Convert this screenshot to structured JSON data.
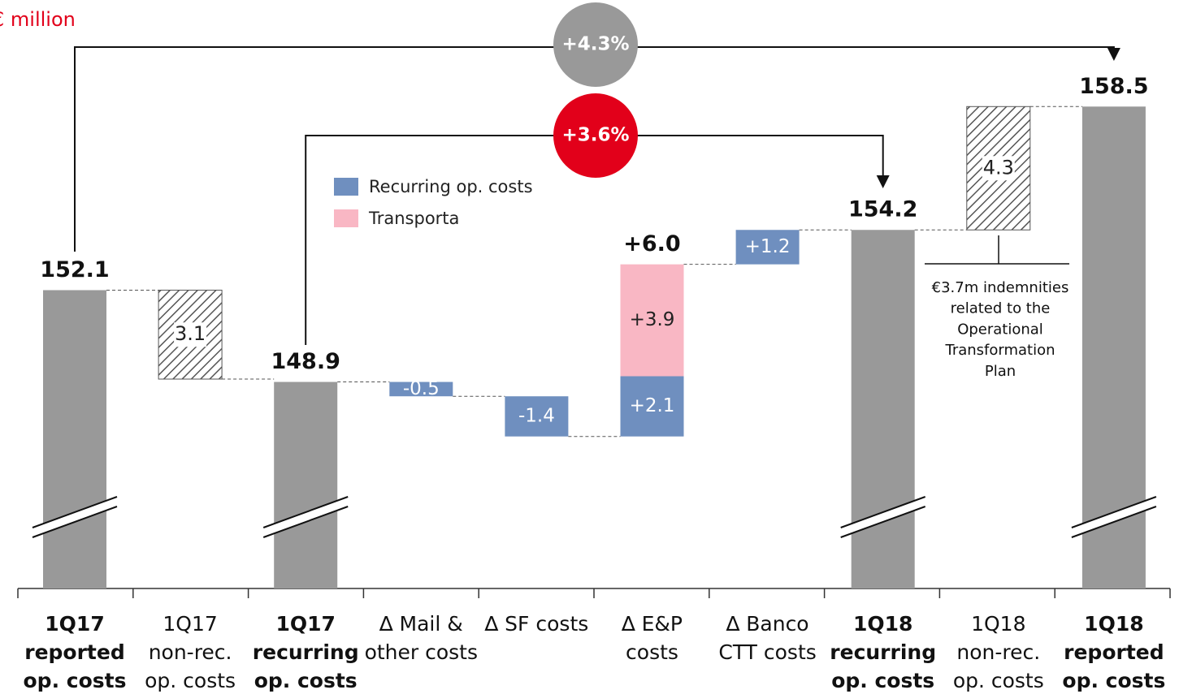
{
  "chart_data": {
    "type": "waterfall",
    "unit_label": "€ million",
    "categories": [
      [
        "1Q17",
        "reported",
        "op. costs"
      ],
      [
        "1Q17",
        "non-rec.",
        "op. costs"
      ],
      [
        "1Q17",
        "recurring",
        "op. costs"
      ],
      [
        "∆ Mail &",
        "other costs"
      ],
      [
        "∆ SF costs"
      ],
      [
        "∆ E&P",
        "costs"
      ],
      [
        "∆ Banco",
        "CTT costs"
      ],
      [
        "1Q18",
        "recurring",
        "op. costs"
      ],
      [
        "1Q18",
        "non-rec.",
        "op. costs"
      ],
      [
        "1Q18",
        "reported",
        "op. costs"
      ]
    ],
    "kinds": [
      "total",
      "non_recurring",
      "total",
      "delta",
      "delta",
      "delta",
      "delta",
      "total",
      "non_recurring",
      "total"
    ],
    "values": [
      152.1,
      -3.1,
      148.9,
      null,
      null,
      6.0,
      null,
      154.2,
      4.3,
      158.5
    ],
    "value_labels": [
      "152.1",
      "3.1",
      "148.9",
      null,
      null,
      "+6.0",
      null,
      "154.2",
      "4.3",
      "158.5"
    ],
    "total_color": "#999999",
    "hatch_color": "#555555",
    "series": [
      {
        "name": "Recurring op. costs",
        "color": "#6f8fbf",
        "values": [
          null,
          null,
          null,
          -0.5,
          -1.4,
          2.1,
          1.2,
          null,
          null,
          null
        ],
        "value_labels": [
          null,
          null,
          null,
          "-0.5",
          "-1.4",
          "+2.1",
          "+1.2",
          null,
          null,
          null
        ]
      },
      {
        "name": "Transporta",
        "color": "#f9b7c4",
        "values": [
          null,
          null,
          null,
          null,
          null,
          3.9,
          null,
          null,
          null,
          null
        ],
        "value_labels": [
          null,
          null,
          null,
          null,
          null,
          "+3.9",
          null,
          null,
          null,
          null
        ]
      }
    ],
    "comparisons": [
      {
        "label": "+4.3%",
        "color": "#999999"
      },
      {
        "label": "+3.6%",
        "color": "#e2001a"
      }
    ],
    "annotation": [
      "€3.7m indemnities",
      "related to the",
      "Operational",
      "Transformation",
      "Plan"
    ],
    "ylim": [
      141.7,
      160.8
    ],
    "axis_break": true
  }
}
